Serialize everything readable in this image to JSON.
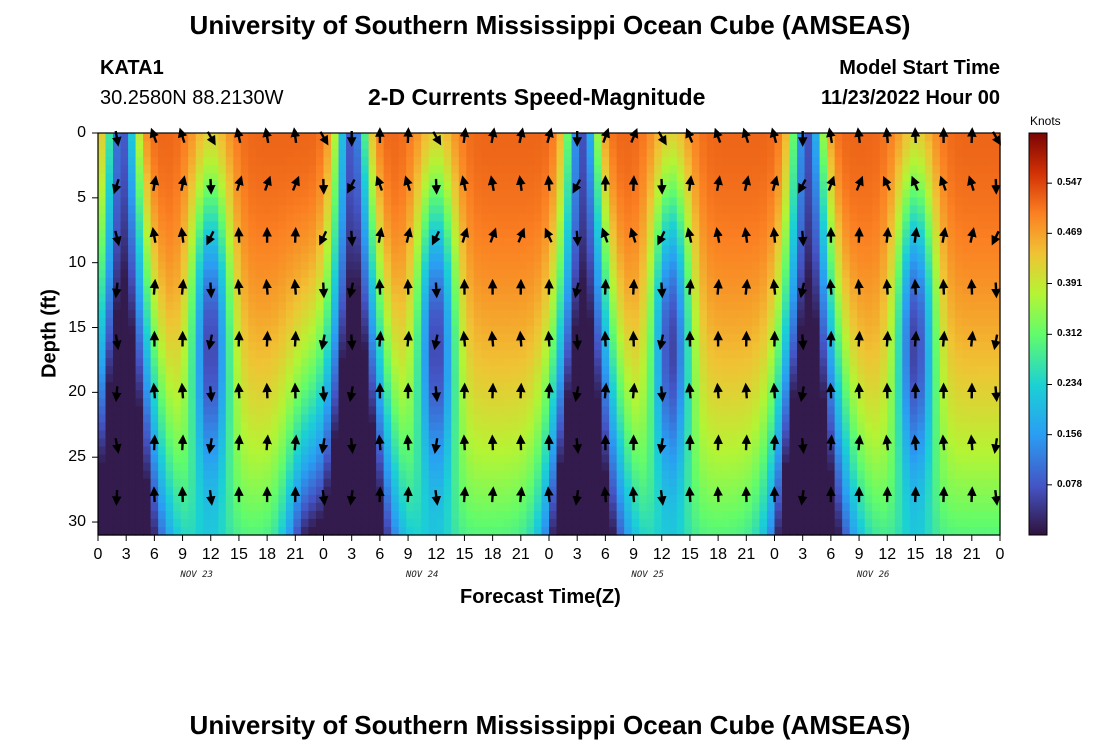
{
  "header": {
    "title": "University of Southern Mississippi Ocean Cube (AMSEAS)",
    "station_id": "KATA1",
    "coordinates": "30.2580N  88.2130W",
    "model_start_label": "Model Start Time",
    "model_start_value": "11/23/2022 Hour 00",
    "footer_title": "University of Southern Mississippi Ocean Cube (AMSEAS)"
  },
  "chart_data": {
    "type": "heatmap",
    "title": "2-D Currents Speed-Magnitude",
    "xlabel": "Forecast Time(Z)",
    "ylabel": "Depth (ft)",
    "colorbar_unit": "Knots",
    "colorbar_ticks": [
      "0.547",
      "0.469",
      "0.391",
      "0.312",
      "0.234",
      "0.156",
      "0.078"
    ],
    "colorbar_tick_values": [
      0.547,
      0.469,
      0.391,
      0.312,
      0.234,
      0.156,
      0.078
    ],
    "colorbar_range": [
      0.0,
      0.625
    ],
    "xlim_hours": [
      0,
      96
    ],
    "ylim_ft": [
      0,
      31
    ],
    "x_tick_labels": [
      "0",
      "3",
      "6",
      "9",
      "12",
      "15",
      "18",
      "21",
      "0",
      "3",
      "6",
      "9",
      "12",
      "15",
      "18",
      "21",
      "0",
      "3",
      "6",
      "9",
      "12",
      "15",
      "18",
      "21",
      "0",
      "3",
      "6",
      "9",
      "12",
      "15",
      "18",
      "21",
      "0"
    ],
    "x_tick_hours": [
      0,
      3,
      6,
      9,
      12,
      15,
      18,
      21,
      24,
      27,
      30,
      33,
      36,
      39,
      42,
      45,
      48,
      51,
      54,
      57,
      60,
      63,
      66,
      69,
      72,
      75,
      78,
      81,
      84,
      87,
      90,
      93,
      96
    ],
    "y_tick_labels": [
      "0",
      "5",
      "10",
      "15",
      "20",
      "25",
      "30"
    ],
    "y_tick_values": [
      0,
      5,
      10,
      15,
      20,
      25,
      30
    ],
    "day_labels": [
      "NOV 23",
      "NOV 24",
      "NOV 25",
      "NOV 26"
    ],
    "day_label_hours": [
      10.5,
      34.5,
      58.5,
      82.5
    ],
    "surface_slack_hours": [
      2.5,
      27,
      51.5,
      75.5
    ],
    "deep_slack_hours": [
      2,
      22,
      27,
      50.5,
      74.5
    ],
    "midwater_min_hours": [
      12,
      36,
      61,
      87
    ],
    "arrow_times": [
      2,
      6,
      9,
      12,
      15,
      18,
      21,
      24,
      27,
      30,
      33,
      36,
      39,
      42,
      45,
      48,
      51,
      54,
      57,
      60,
      63,
      66,
      69,
      72,
      75,
      78,
      81,
      84,
      87,
      90,
      93,
      96
    ],
    "arrow_depths": [
      0,
      4,
      8,
      12,
      16,
      20,
      24,
      28
    ],
    "flood_bands": [
      [
        3,
        12
      ],
      [
        12,
        24
      ],
      [
        27,
        36
      ],
      [
        36,
        50
      ],
      [
        51,
        60
      ],
      [
        60,
        74
      ],
      [
        75,
        85
      ],
      [
        85,
        96
      ]
    ]
  }
}
